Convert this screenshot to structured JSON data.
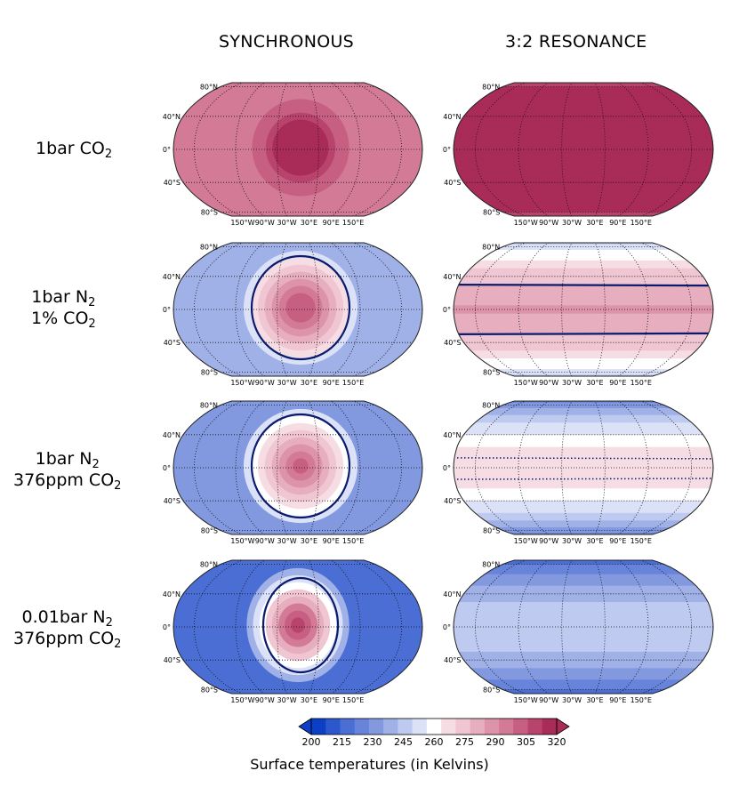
{
  "columns": [
    "SYNCHRONOUS",
    "3:2 RESONANCE"
  ],
  "rows": [
    {
      "main": "1bar CO",
      "sub": "2",
      "line2": "",
      "line2sub": ""
    },
    {
      "main": "1bar N",
      "sub": "2",
      "line2": "1% CO",
      "line2sub": "2"
    },
    {
      "main": "1bar N",
      "sub": "2",
      "line2": "376ppm CO",
      "line2sub": "2"
    },
    {
      "main": "0.01bar N",
      "sub": "2",
      "line2": "376ppm CO",
      "line2sub": "2"
    }
  ],
  "lat_labels": [
    "80°N",
    "40°N",
    "0°",
    "40°S",
    "80°S"
  ],
  "lon_labels": [
    "150°W",
    "90°W",
    "30°W",
    "30°E",
    "90°E",
    "150°E"
  ],
  "colorbar": {
    "ticks": [
      "200",
      "215",
      "230",
      "245",
      "260",
      "275",
      "290",
      "305",
      "320"
    ],
    "title": "Surface temperatures (in Kelvins)",
    "colors": [
      "#0b3fc6",
      "#2d58cd",
      "#4a6ed4",
      "#6784da",
      "#8299e0",
      "#a0b1e8",
      "#bfcaf0",
      "#dbe2f7",
      "#ffffff",
      "#f6dde4",
      "#efc6d2",
      "#e7aebf",
      "#dd93aa",
      "#d27a96",
      "#c65f81",
      "#b8436c",
      "#a82b58"
    ]
  },
  "chart_data": {
    "type": "heatmap",
    "projection": "Robinson",
    "value_range": [
      200,
      320
    ],
    "panels": [
      {
        "row": 0,
        "column": "SYNCHRONOUS",
        "background_T": 292,
        "hot_spot_T": 325,
        "ice_line": false
      },
      {
        "row": 0,
        "column": "3:2 RESONANCE",
        "equator_T": 325,
        "pole_T": 310,
        "zonal_bands": true
      },
      {
        "row": 1,
        "column": "SYNCHRONOUS",
        "background_T": 240,
        "hot_spot_T": 305,
        "ice_line": true
      },
      {
        "row": 1,
        "column": "3:2 RESONANCE",
        "equator_T": 285,
        "pole_T": 245,
        "ice_line_lat": [
          30,
          -30
        ]
      },
      {
        "row": 2,
        "column": "SYNCHRONOUS",
        "background_T": 235,
        "hot_spot_T": 300,
        "ice_line": true
      },
      {
        "row": 2,
        "column": "3:2 RESONANCE",
        "equator_T": 270,
        "pole_T": 225,
        "ice_line_lat": [
          12,
          -14
        ]
      },
      {
        "row": 3,
        "column": "SYNCHRONOUS",
        "background_T": 215,
        "hot_spot_T": 310,
        "ice_line": true
      },
      {
        "row": 3,
        "column": "3:2 RESONANCE",
        "equator_T": 248,
        "pole_T": 215,
        "ice_line": false
      }
    ]
  }
}
